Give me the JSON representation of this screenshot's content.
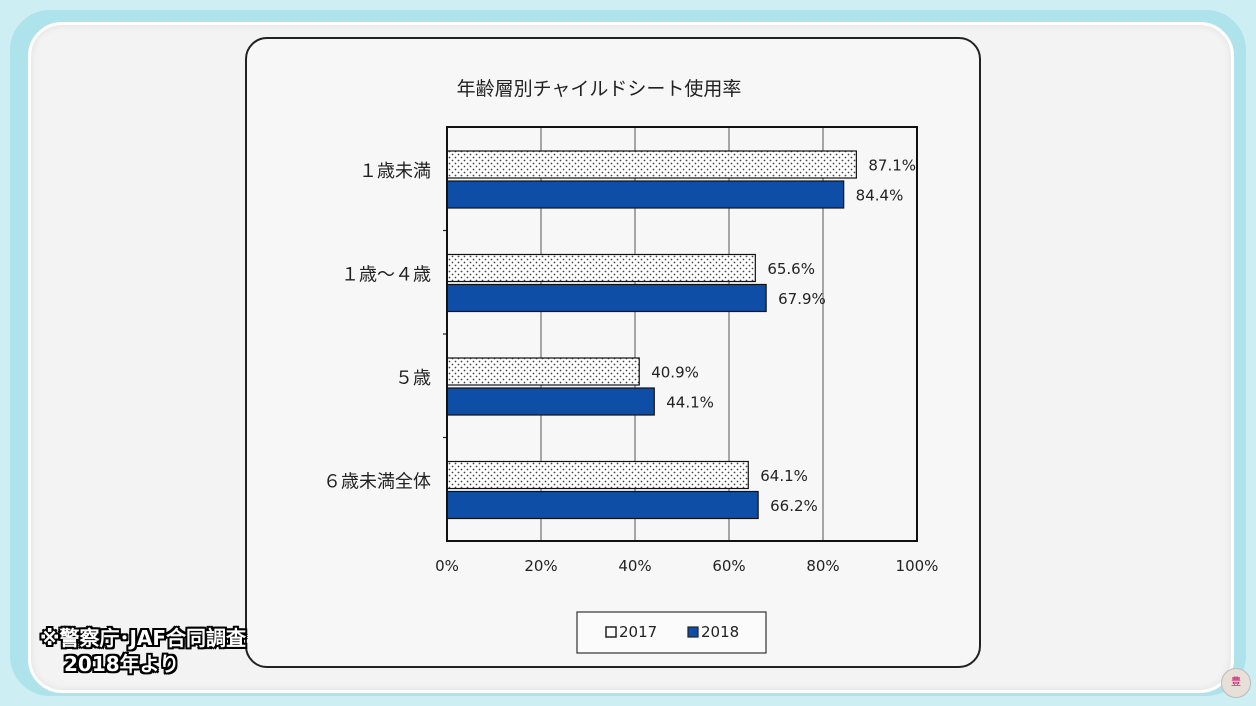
{
  "chart_data": {
    "type": "bar",
    "orientation": "horizontal",
    "title": "年齢層別チャイルドシート使用率",
    "categories": [
      "１歳未満",
      "１歳～４歳",
      "５歳",
      "６歳未満全体"
    ],
    "series": [
      {
        "name": "2017",
        "values": [
          87.1,
          65.6,
          40.9,
          64.1
        ],
        "labels": [
          "87.1%",
          "65.6%",
          "40.9%",
          "64.1%"
        ],
        "fill": "dotted",
        "color": "#ffffff"
      },
      {
        "name": "2018",
        "values": [
          84.4,
          67.9,
          44.1,
          66.2
        ],
        "labels": [
          "84.4%",
          "67.9%",
          "44.1%",
          "66.2%"
        ],
        "fill": "solid",
        "color": "#0e4ea6"
      }
    ],
    "xlim": [
      0,
      100
    ],
    "x_ticks": [
      "0%",
      "20%",
      "40%",
      "60%",
      "80%",
      "100%"
    ],
    "grid": true,
    "legend_position": "bottom"
  },
  "note": {
    "line1": "※警察庁･JAF合同調査",
    "line2": "2018年より"
  },
  "mascot_label": "豊"
}
